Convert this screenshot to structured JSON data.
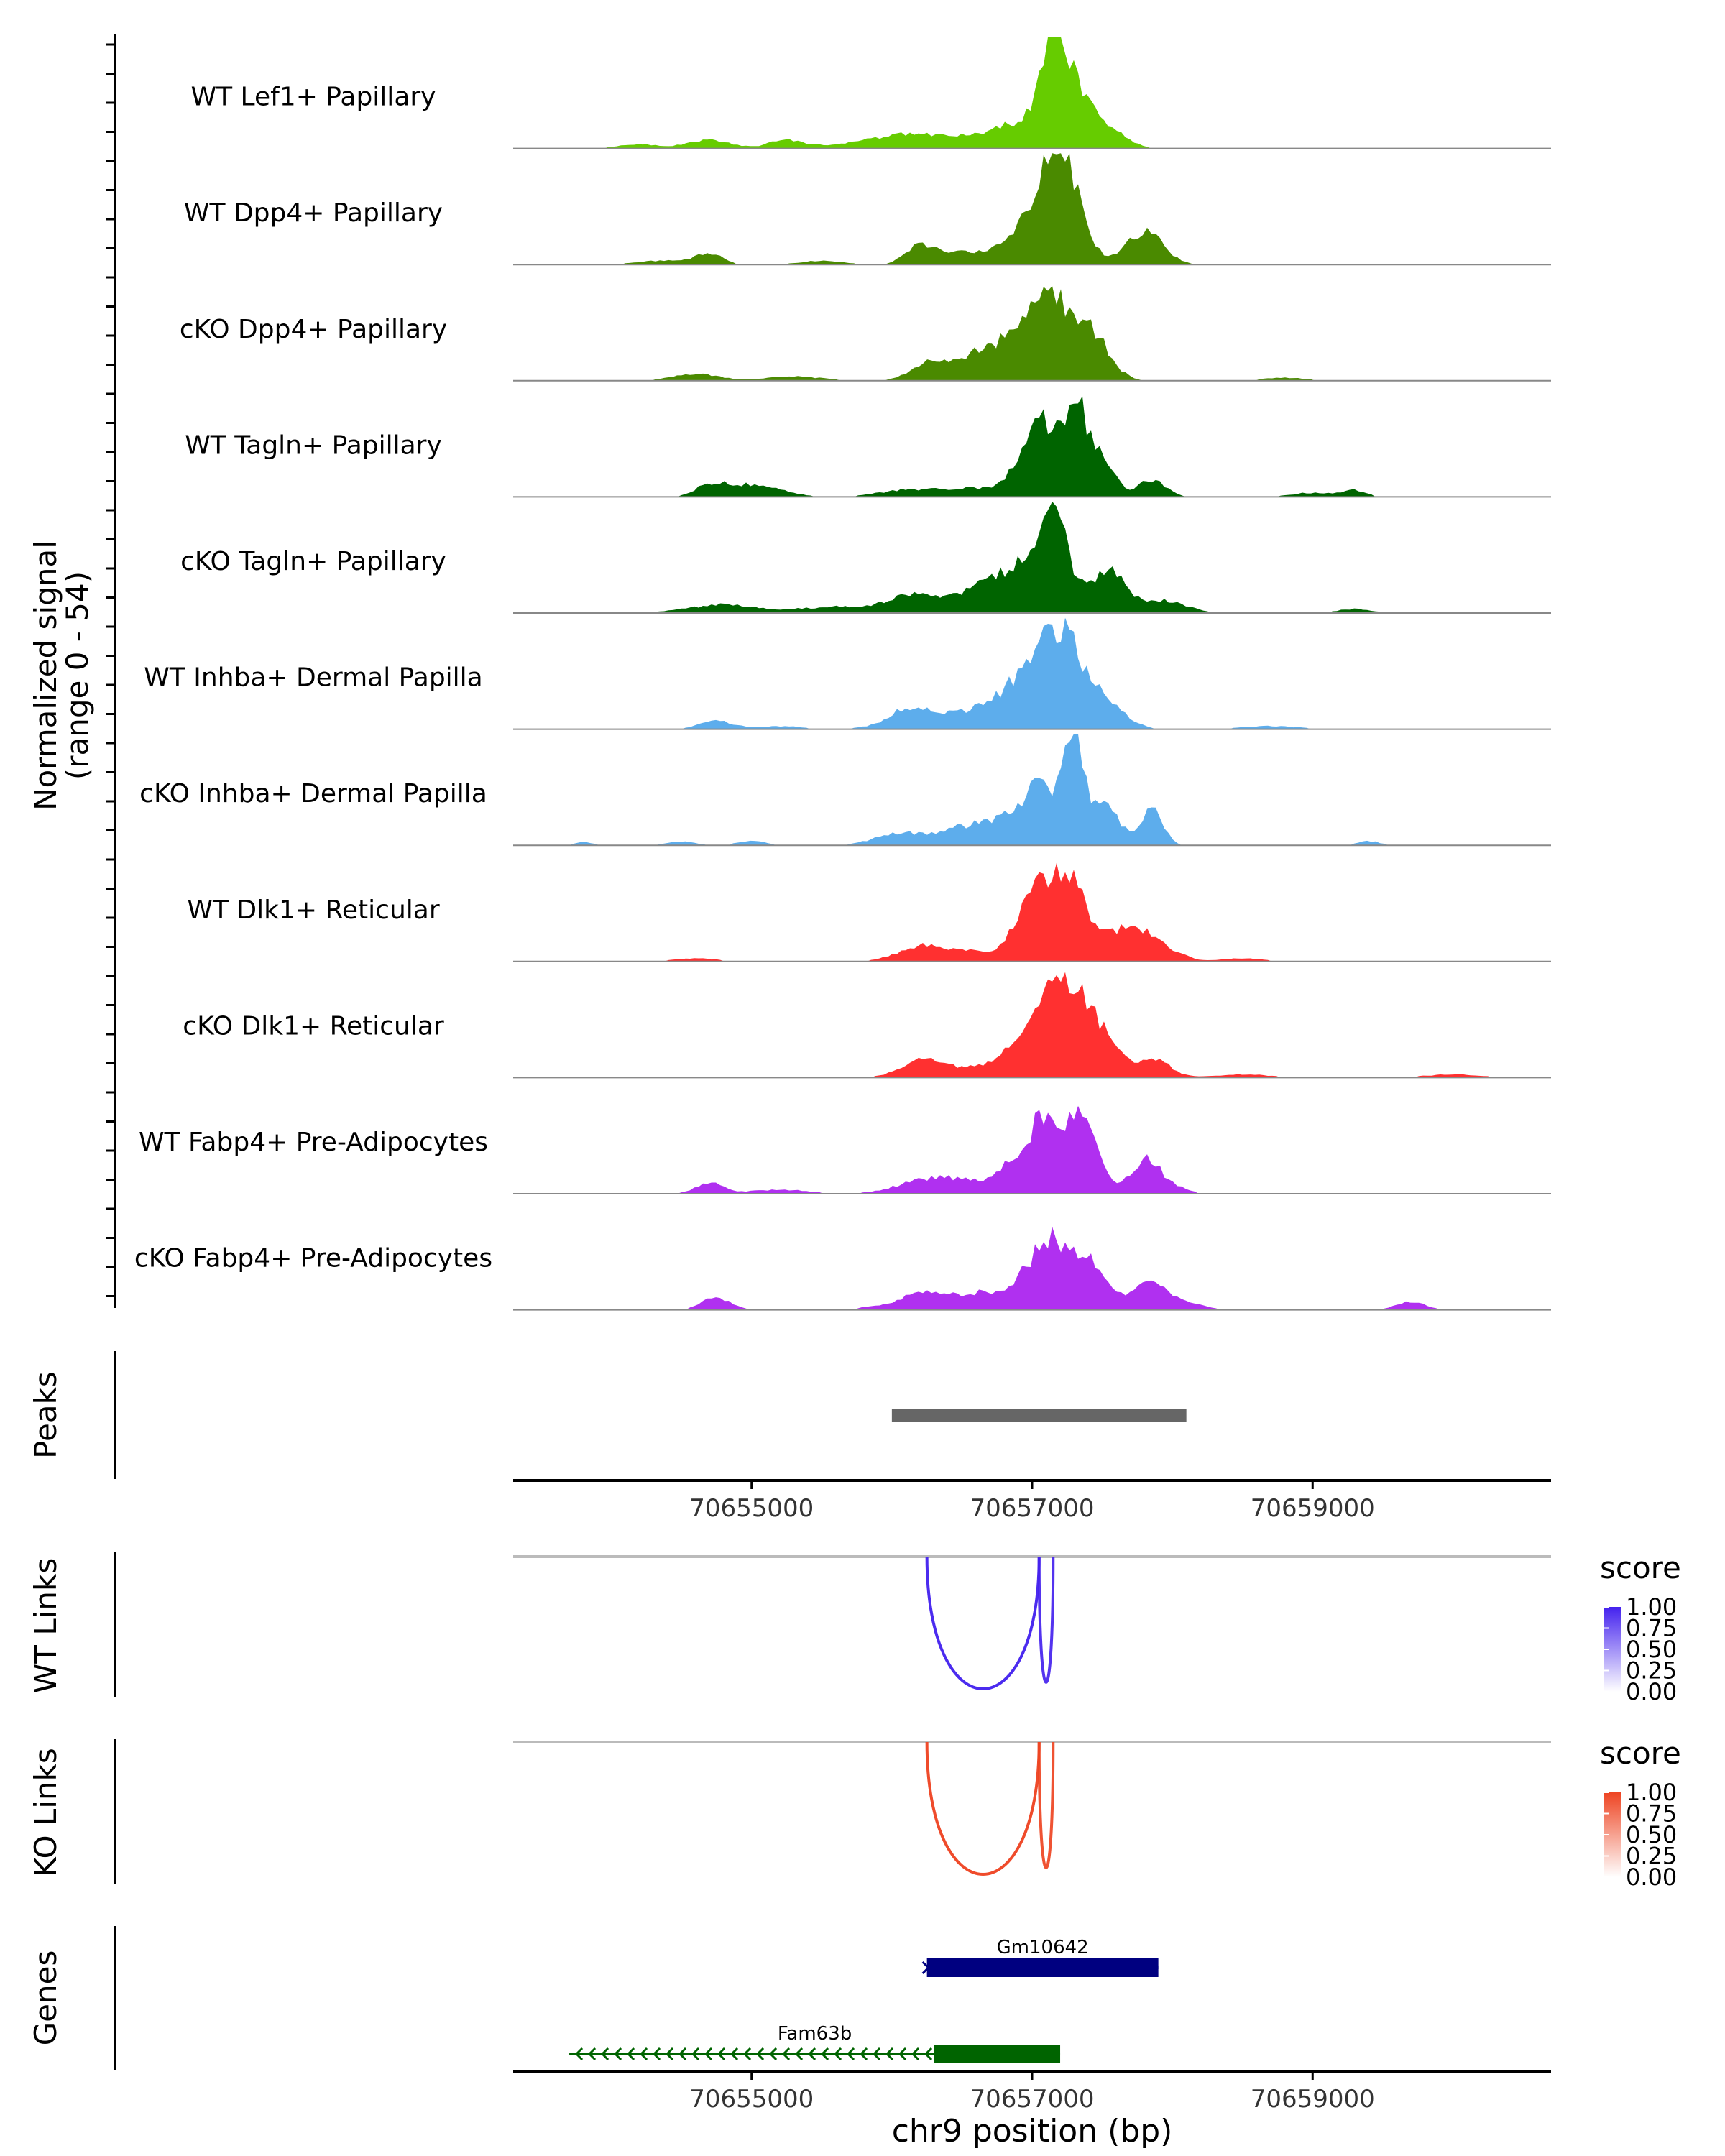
{
  "chart_data": {
    "type": "area",
    "title": "",
    "chromosome": "chr9",
    "xlim": [
      70653300,
      70660700
    ],
    "coverage": {
      "ylabel": "Normalized signal",
      "ylabel_sub": "(range 0 - 54)",
      "ylim": [
        0,
        54
      ],
      "tracks": [
        {
          "name": "WT Lef1+ Papillary",
          "color": "#66CC00",
          "peaks": [
            [
              70655250,
              120,
              4
            ],
            [
              70656150,
              250,
              3
            ],
            [
              70655900,
              300,
              1.5
            ],
            [
              70656500,
              500,
              4
            ],
            [
              70657150,
              90,
              44
            ],
            [
              70657320,
              120,
              22
            ],
            [
              70657550,
              120,
              8
            ],
            [
              70656950,
              200,
              10
            ],
            [
              70654700,
              150,
              4
            ],
            [
              70654200,
              150,
              2
            ]
          ]
        },
        {
          "name": "WT Dpp4+ Papillary",
          "color": "#4A8A00",
          "peaks": [
            [
              70657150,
              100,
              46
            ],
            [
              70656950,
              150,
              18
            ],
            [
              70657300,
              110,
              24
            ],
            [
              70657800,
              130,
              16
            ],
            [
              70656200,
              100,
              8
            ],
            [
              70656500,
              200,
              6
            ],
            [
              70654700,
              90,
              5
            ],
            [
              70654400,
              200,
              2
            ],
            [
              70655500,
              150,
              2
            ]
          ]
        },
        {
          "name": "cKO Dpp4+ Papillary",
          "color": "#4A8A00",
          "peaks": [
            [
              70657150,
              170,
              36
            ],
            [
              70657450,
              120,
              16
            ],
            [
              70656800,
              220,
              12
            ],
            [
              70656250,
              120,
              6
            ],
            [
              70656600,
              250,
              6
            ],
            [
              70654600,
              160,
              3.5
            ],
            [
              70655300,
              200,
              2
            ],
            [
              70658800,
              150,
              1.5
            ]
          ]
        },
        {
          "name": "WT Tagln+ Papillary",
          "color": "#006400",
          "peaks": [
            [
              70657050,
              130,
              38
            ],
            [
              70657320,
              80,
              40
            ],
            [
              70657500,
              90,
              16
            ],
            [
              70657850,
              100,
              8
            ],
            [
              70656600,
              250,
              4
            ],
            [
              70655000,
              200,
              6
            ],
            [
              70654700,
              100,
              5
            ],
            [
              70656100,
              200,
              3
            ],
            [
              70659300,
              80,
              3
            ],
            [
              70659000,
              150,
              2
            ]
          ]
        },
        {
          "name": "cKO Tagln+ Papillary",
          "color": "#006400",
          "peaks": [
            [
              70657150,
              110,
              42
            ],
            [
              70656900,
              200,
              18
            ],
            [
              70657550,
              120,
              20
            ],
            [
              70656500,
              300,
              8
            ],
            [
              70657950,
              150,
              6
            ],
            [
              70656100,
              150,
              5
            ],
            [
              70654800,
              250,
              4
            ],
            [
              70655600,
              250,
              3
            ],
            [
              70659300,
              120,
              2
            ]
          ]
        },
        {
          "name": "WT Inhba+ Dermal Papilla",
          "color": "#5DADEC",
          "peaks": [
            [
              70657200,
              170,
              44
            ],
            [
              70656900,
              200,
              16
            ],
            [
              70657550,
              130,
              10
            ],
            [
              70656400,
              300,
              7
            ],
            [
              70656100,
              120,
              6
            ],
            [
              70654750,
              120,
              4
            ],
            [
              70655200,
              150,
              1.5
            ],
            [
              70658700,
              200,
              1.5
            ]
          ]
        },
        {
          "name": "cKO Inhba+ Dermal Papilla",
          "color": "#5DADEC",
          "peaks": [
            [
              70657300,
              55,
              50
            ],
            [
              70657100,
              160,
              24
            ],
            [
              70657500,
              110,
              20
            ],
            [
              70657850,
              80,
              18
            ],
            [
              70656800,
              250,
              10
            ],
            [
              70656400,
              250,
              5
            ],
            [
              70656000,
              150,
              4
            ],
            [
              70654500,
              100,
              2
            ],
            [
              70655000,
              100,
              2
            ],
            [
              70659400,
              80,
              2
            ],
            [
              70653800,
              70,
              1.5
            ]
          ]
        },
        {
          "name": "WT Dlk1+ Reticular",
          "color": "#FF3030",
          "peaks": [
            [
              70657250,
              150,
              40
            ],
            [
              70657000,
              130,
              22
            ],
            [
              70657700,
              120,
              18
            ],
            [
              70656500,
              300,
              5
            ],
            [
              70656200,
              150,
              5
            ],
            [
              70657950,
              120,
              6
            ],
            [
              70654600,
              150,
              1.5
            ],
            [
              70658500,
              150,
              1.5
            ]
          ]
        },
        {
          "name": "cKO Dlk1+ Reticular",
          "color": "#FF3030",
          "peaks": [
            [
              70657250,
              130,
              42
            ],
            [
              70657000,
              160,
              22
            ],
            [
              70657500,
              110,
              18
            ],
            [
              70657850,
              120,
              10
            ],
            [
              70656500,
              300,
              5
            ],
            [
              70656200,
              120,
              6
            ],
            [
              70658500,
              200,
              1.5
            ],
            [
              70660000,
              200,
              1.5
            ]
          ]
        },
        {
          "name": "WT Fabp4+ Pre-Adipocytes",
          "color": "#B030F0",
          "peaks": [
            [
              70657100,
              100,
              34
            ],
            [
              70657350,
              110,
              36
            ],
            [
              70656900,
              120,
              14
            ],
            [
              70657800,
              110,
              16
            ],
            [
              70656500,
              250,
              6
            ],
            [
              70656200,
              200,
              4
            ],
            [
              70654700,
              100,
              5
            ],
            [
              70655200,
              200,
              2
            ],
            [
              70658000,
              100,
              3
            ]
          ]
        },
        {
          "name": "cKO Fabp4+ Pre-Adipocytes",
          "color": "#B030F0",
          "peaks": [
            [
              70657150,
              180,
              34
            ],
            [
              70657450,
              100,
              14
            ],
            [
              70657850,
              140,
              14
            ],
            [
              70656600,
              220,
              8
            ],
            [
              70656200,
              120,
              8
            ],
            [
              70654750,
              100,
              6
            ],
            [
              70659700,
              100,
              4
            ],
            [
              70655900,
              100,
              2
            ],
            [
              70658200,
              80,
              2
            ]
          ]
        }
      ]
    },
    "peaks_track": {
      "label": "Peaks",
      "regions": [
        [
          70656000,
          70658100
        ]
      ],
      "color": "#666666"
    },
    "axis": {
      "ticks": [
        70655000,
        70657000,
        70659000
      ],
      "tick_labels": [
        "70655000",
        "70657000",
        "70659000"
      ],
      "xlabel": "chr9 position (bp)"
    },
    "links": [
      {
        "label": "WT Links",
        "legend_title": "score",
        "legend_ticks": [
          "1.00",
          "0.75",
          "0.50",
          "0.25",
          "0.00"
        ],
        "color": "#4422EE",
        "arcs": [
          {
            "start": 70656250,
            "end": 70657050,
            "depth": 1.0,
            "score": 0.9
          },
          {
            "start": 70657050,
            "end": 70657150,
            "depth": 0.95,
            "score": 0.8
          }
        ]
      },
      {
        "label": "KO Links",
        "legend_title": "score",
        "legend_ticks": [
          "1.00",
          "0.75",
          "0.50",
          "0.25",
          "0.00"
        ],
        "color": "#EE4422",
        "arcs": [
          {
            "start": 70656250,
            "end": 70657050,
            "depth": 1.0,
            "score": 0.9
          },
          {
            "start": 70657050,
            "end": 70657150,
            "depth": 0.95,
            "score": 0.8
          }
        ]
      }
    ],
    "genes": {
      "label": "Genes",
      "items": [
        {
          "name": "Gm10642",
          "start": 70656250,
          "end": 70657900,
          "exon": [
            70656250,
            70657900
          ],
          "strand": "+",
          "color": "#000080"
        },
        {
          "name": "Fam63b",
          "start": 70653700,
          "end": 70657200,
          "exon": [
            70656300,
            70657200
          ],
          "strand": "-",
          "color": "#006400"
        }
      ]
    }
  }
}
